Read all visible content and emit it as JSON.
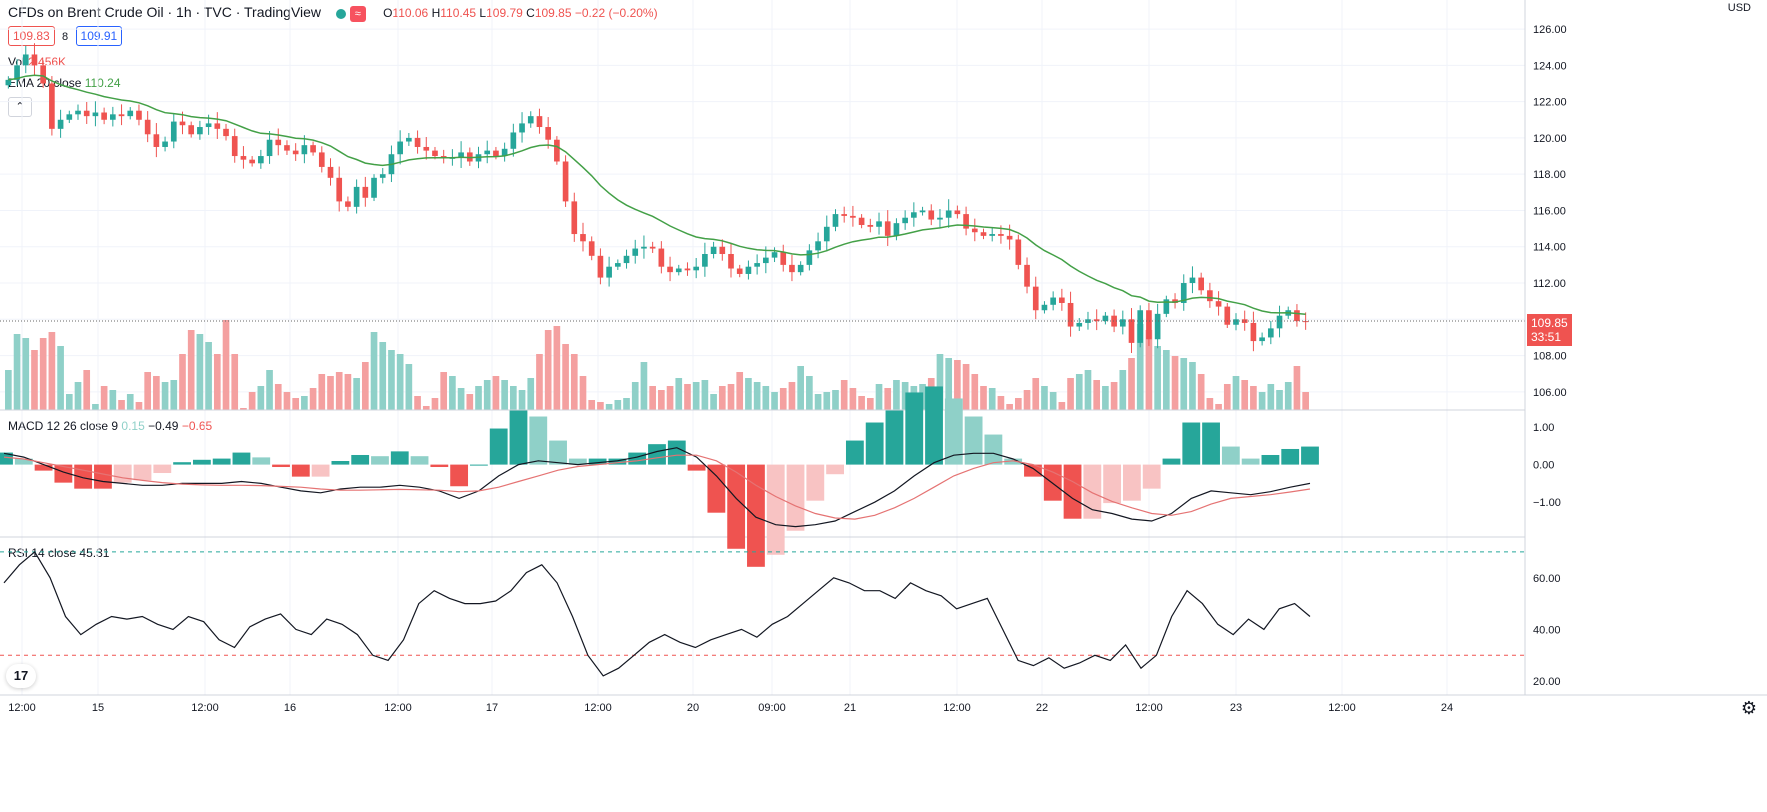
{
  "header": {
    "symbol_title": "CFDs on Brent Crude Oil · 1h · TVC · TradingView",
    "ohlc": {
      "o_label": "O",
      "o": "110.06",
      "h_label": "H",
      "h": "110.45",
      "l_label": "L",
      "l": "109.79",
      "c_label": "C",
      "c": "109.85",
      "change": "−0.22 (−0.20%)"
    },
    "bid": "109.83",
    "spread": "8",
    "ask": "109.91",
    "currency": "USD",
    "logo_text": "17"
  },
  "legends": {
    "vol_label": "Vol",
    "vol_value": "2.456K",
    "ema_label": "EMA 20 close",
    "ema_value": "110.24",
    "macd_label": "MACD 12 26 close 9",
    "macd_hist": "0.15",
    "macd_line": "−0.49",
    "macd_signal": "−0.65",
    "rsi_label": "RSI 14 close",
    "rsi_value": "45.31"
  },
  "axis": {
    "price_ticks": [
      "126.00",
      "124.00",
      "122.00",
      "120.00",
      "118.00",
      "116.00",
      "114.00",
      "112.00",
      "110.00",
      "108.00",
      "106.00"
    ],
    "macd_ticks": [
      "1.00",
      "0.00",
      "−1.00"
    ],
    "rsi_ticks": [
      "60.00",
      "40.00",
      "20.00"
    ],
    "time_ticks": [
      "12:00",
      "15",
      "12:00",
      "16",
      "12:00",
      "17",
      "12:00",
      "20",
      "09:00",
      "21",
      "12:00",
      "22",
      "12:00",
      "23",
      "12:00",
      "24"
    ],
    "last_price": "109.85",
    "countdown": "33:51"
  },
  "colors": {
    "up": "#26a69a",
    "down": "#ef5350",
    "vol_up": "#8fd0c8",
    "vol_down": "#f4a0a0",
    "ema": "#43a047",
    "macd_line": "#131722",
    "signal_line": "#e57373",
    "rsi_line": "#131722",
    "grid": "#f0f3fa"
  },
  "icons": {
    "settings": "gear-icon",
    "visibility": "eye-icon",
    "data_window": "wave-icon",
    "collapse": "chevron-up-icon"
  },
  "chart_data": [
    {
      "type": "candlestick",
      "title": "CFDs on Brent Crude Oil · 1h · TVC · TradingView",
      "ylabel": "USD",
      "ylim": [
        105,
        126.5
      ],
      "x": [
        "15",
        "12:00",
        "16",
        "12:00",
        "17",
        "12:00",
        "20",
        "09:00",
        "21",
        "12:00",
        "22",
        "12:00",
        "23",
        "12:00",
        "24"
      ],
      "close_series": [
        123.2,
        124.0,
        124.6,
        124.0,
        123.0,
        120.5,
        121.0,
        121.3,
        121.5,
        121.2,
        121.4,
        121.0,
        121.3,
        121.2,
        121.5,
        121.0,
        120.2,
        119.5,
        119.8,
        120.9,
        120.7,
        120.2,
        120.6,
        120.8,
        120.5,
        120.1,
        119.0,
        118.8,
        118.6,
        119.0,
        119.9,
        119.6,
        119.3,
        119.1,
        119.6,
        119.2,
        118.4,
        117.8,
        116.5,
        116.2,
        117.3,
        116.7,
        117.8,
        118.0,
        119.1,
        119.8,
        120.0,
        119.5,
        119.3,
        119.0,
        118.9,
        118.9,
        119.2,
        118.7,
        119.1,
        119.3,
        119.0,
        119.4,
        120.3,
        120.8,
        121.2,
        120.6,
        119.9,
        118.7,
        116.5,
        114.7,
        114.3,
        113.5,
        112.3,
        112.9,
        113.1,
        113.5,
        113.9,
        114.0,
        113.9,
        112.9,
        112.6,
        112.8,
        112.7,
        112.9,
        113.6,
        114.0,
        113.6,
        112.8,
        112.5,
        112.9,
        113.1,
        113.4,
        113.7,
        113.0,
        112.6,
        113.0,
        113.8,
        114.3,
        115.1,
        115.8,
        115.7,
        115.6,
        115.2,
        115.1,
        115.4,
        114.6,
        115.3,
        115.6,
        115.9,
        116.0,
        115.5,
        115.6,
        116.0,
        115.8,
        115.0,
        114.8,
        114.6,
        114.7,
        114.6,
        114.4,
        113.0,
        111.8,
        110.5,
        110.8,
        111.2,
        110.9,
        109.6,
        109.8,
        110.0,
        109.9,
        110.2,
        109.6,
        110.0,
        108.7,
        110.5,
        108.9,
        110.3,
        111.1,
        110.9,
        112.0,
        112.3,
        111.6,
        111.0,
        110.7,
        109.7,
        110.0,
        109.8,
        108.8,
        109.0,
        109.5,
        110.2,
        110.5,
        109.9,
        109.85
      ],
      "volume_series": [
        2.0,
        3.8,
        3.6,
        3.0,
        3.6,
        3.9,
        3.2,
        0.8,
        1.4,
        2.0,
        0.3,
        1.2,
        1.0,
        0.5,
        0.8,
        0.4,
        1.9,
        1.7,
        1.4,
        1.5,
        2.8,
        4.0,
        3.8,
        3.4,
        2.8,
        4.5,
        2.8,
        0.1,
        0.9,
        1.2,
        2.0,
        1.3,
        0.9,
        0.6,
        0.7,
        1.1,
        1.8,
        1.7,
        1.9,
        1.8,
        1.6,
        2.4,
        3.9,
        3.4,
        3.0,
        2.8,
        2.3,
        0.7,
        0.2,
        0.6,
        1.9,
        1.7,
        1.1,
        0.8,
        1.2,
        1.5,
        1.7,
        1.5,
        1.2,
        1.0,
        1.6,
        2.8,
        4.0,
        4.2,
        3.3,
        2.8,
        1.7,
        0.5,
        0.4,
        0.3,
        0.5,
        0.6,
        1.4,
        2.4,
        1.2,
        1.0,
        1.2,
        1.6,
        1.3,
        1.4,
        1.5,
        0.8,
        1.2,
        1.3,
        1.9,
        1.6,
        1.4,
        1.2,
        0.9,
        1.1,
        1.4,
        2.2,
        1.7,
        0.8,
        0.9,
        1.0,
        1.5,
        1.1,
        0.7,
        0.6,
        1.3,
        1.1,
        1.5,
        1.4,
        1.2,
        1.3,
        1.6,
        2.8,
        2.6,
        2.5,
        2.3,
        1.8,
        1.2,
        1.1,
        0.7,
        0.3,
        0.6,
        1.0,
        1.6,
        1.2,
        0.9,
        0.4,
        1.6,
        1.8,
        2.0,
        1.5,
        1.2,
        1.4,
        2.0,
        2.6,
        4.3,
        4.0,
        3.2,
        3.0,
        2.7,
        2.6,
        2.4,
        1.8,
        0.6,
        0.3,
        1.3,
        1.7,
        1.5,
        1.2,
        0.9,
        1.3,
        1.0,
        1.4,
        2.2,
        0.9
      ]
    },
    {
      "type": "line",
      "title": "MACD 12 26 close 9",
      "ylim": [
        -1.9,
        1.4
      ],
      "series": [
        {
          "name": "MACD",
          "values": [
            0.3,
            0.2,
            0.0,
            -0.2,
            -0.35,
            -0.45,
            -0.5,
            -0.55,
            -0.55,
            -0.5,
            -0.5,
            -0.5,
            -0.45,
            -0.5,
            -0.6,
            -0.7,
            -0.75,
            -0.65,
            -0.6,
            -0.6,
            -0.55,
            -0.6,
            -0.7,
            -0.9,
            -0.7,
            -0.3,
            0.0,
            0.1,
            0.05,
            0.0,
            0.05,
            0.1,
            0.2,
            0.35,
            0.45,
            0.2,
            -0.3,
            -0.9,
            -1.4,
            -1.6,
            -1.65,
            -1.6,
            -1.5,
            -1.25,
            -1.0,
            -0.7,
            -0.3,
            0.05,
            0.25,
            0.3,
            0.3,
            0.15,
            -0.1,
            -0.5,
            -0.9,
            -1.2,
            -1.3,
            -1.45,
            -1.5,
            -1.3,
            -0.9,
            -0.7,
            -0.75,
            -0.8,
            -0.72,
            -0.6,
            -0.5
          ]
        },
        {
          "name": "Signal",
          "values": [
            0.2,
            0.15,
            0.05,
            -0.05,
            -0.15,
            -0.25,
            -0.35,
            -0.42,
            -0.48,
            -0.52,
            -0.54,
            -0.55,
            -0.55,
            -0.56,
            -0.58,
            -0.6,
            -0.65,
            -0.68,
            -0.68,
            -0.67,
            -0.66,
            -0.67,
            -0.68,
            -0.72,
            -0.7,
            -0.6,
            -0.45,
            -0.3,
            -0.15,
            -0.05,
            0.0,
            0.05,
            0.1,
            0.18,
            0.25,
            0.25,
            0.1,
            -0.2,
            -0.55,
            -0.85,
            -1.1,
            -1.3,
            -1.42,
            -1.45,
            -1.35,
            -1.15,
            -0.9,
            -0.6,
            -0.3,
            -0.1,
            0.05,
            0.1,
            0.0,
            -0.2,
            -0.45,
            -0.75,
            -0.98,
            -1.15,
            -1.3,
            -1.35,
            -1.25,
            -1.05,
            -0.9,
            -0.85,
            -0.8,
            -0.73,
            -0.65
          ]
        }
      ]
    },
    {
      "type": "line",
      "title": "RSI 14 close",
      "ylim": [
        15,
        75
      ],
      "series": [
        {
          "name": "RSI",
          "values": [
            58,
            65,
            70,
            60,
            45,
            38,
            42,
            45,
            44,
            45,
            42,
            40,
            45,
            43,
            36,
            33,
            41,
            44,
            46,
            40,
            38,
            44,
            42,
            38,
            30,
            28,
            36,
            50,
            55,
            52,
            50,
            50,
            51,
            55,
            62,
            65,
            58,
            45,
            30,
            22,
            25,
            30,
            35,
            38,
            35,
            33,
            36,
            38,
            40,
            37,
            42,
            45,
            50,
            55,
            60,
            58,
            55,
            55,
            52,
            58,
            55,
            53,
            48,
            50,
            52,
            40,
            28,
            26,
            29,
            25,
            27,
            30,
            28,
            34,
            25,
            30,
            45,
            55,
            50,
            42,
            38,
            44,
            40,
            48,
            50,
            45
          ]
        }
      ],
      "reference_lines": [
        70,
        30
      ]
    }
  ]
}
